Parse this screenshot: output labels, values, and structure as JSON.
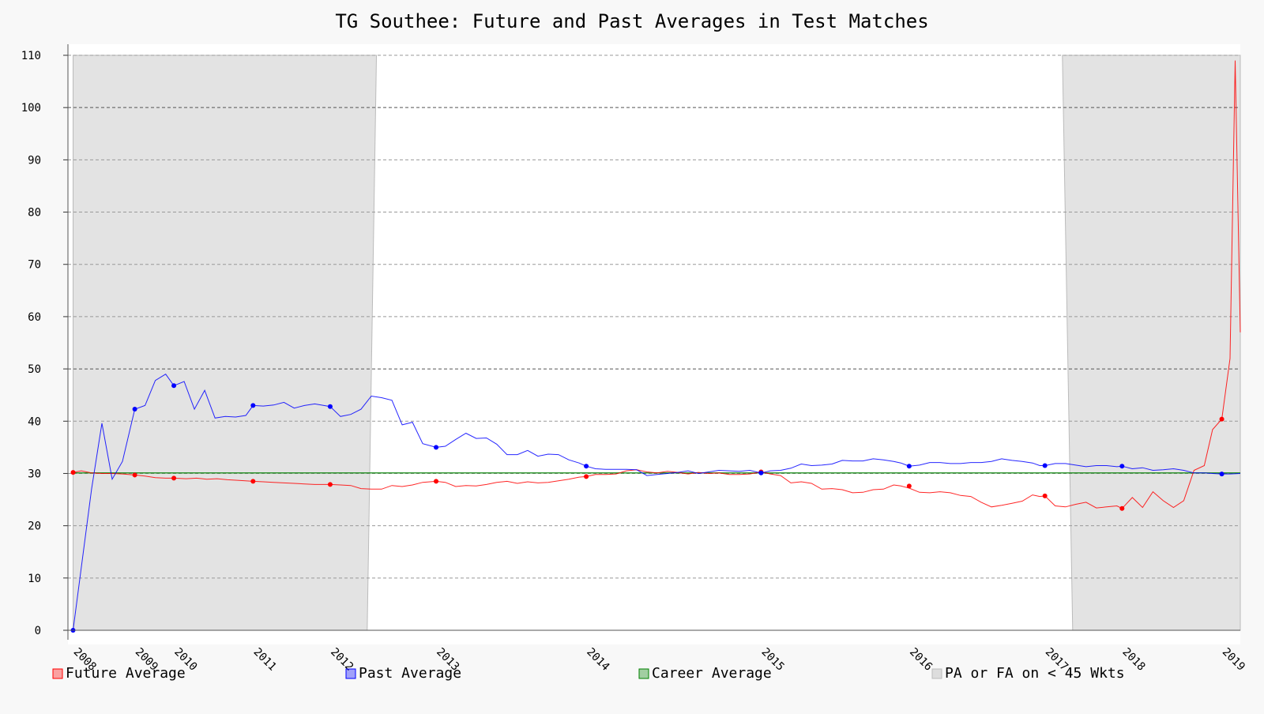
{
  "chart_data": {
    "type": "line",
    "title": "TG Southee: Future and Past Averages in Test Matches",
    "ylim": [
      0,
      110
    ],
    "y_ticks": [
      "0",
      "10",
      "20",
      "30",
      "40",
      "50",
      "60",
      "70",
      "80",
      "90",
      "100",
      "110"
    ],
    "x_range": [
      2007.95,
      2019.35
    ],
    "x_ticks": [
      {
        "label": "2008",
        "x": 2008.0
      },
      {
        "label": "2009",
        "x": 2008.6
      },
      {
        "label": "2010",
        "x": 2008.98
      },
      {
        "label": "2011",
        "x": 2009.75
      },
      {
        "label": "2012",
        "x": 2010.5
      },
      {
        "label": "2013",
        "x": 2011.53
      },
      {
        "label": "2014",
        "x": 2012.99
      },
      {
        "label": "2015",
        "x": 2014.69
      },
      {
        "label": "2016",
        "x": 2016.13
      },
      {
        "label": "2017",
        "x": 2017.45
      },
      {
        "label": "2018",
        "x": 2018.2
      },
      {
        "label": "2019",
        "x": 2019.17
      }
    ],
    "grid": true,
    "legend_position": "bottom",
    "shaded_regions": [
      {
        "name": "PA or FA on < 45 Wkts",
        "x_start_bottom": 2008.0,
        "x_end_bottom": 2010.86,
        "x_start_top": 2008.0,
        "x_end_top": 2010.95
      },
      {
        "name": "PA or FA on < 45 Wkts",
        "x_start_bottom": 2017.72,
        "x_end_bottom": 2019.35,
        "x_start_top": 2017.62,
        "x_end_top": 2019.35
      }
    ],
    "series": [
      {
        "name": "Future Average",
        "color": "#ff0000",
        "x": [
          2008.0,
          2008.08,
          2008.18,
          2008.28,
          2008.38,
          2008.48,
          2008.6,
          2008.7,
          2008.8,
          2008.9,
          2008.98,
          2009.1,
          2009.2,
          2009.3,
          2009.4,
          2009.5,
          2009.6,
          2009.75,
          2009.85,
          2009.95,
          2010.05,
          2010.15,
          2010.25,
          2010.35,
          2010.5,
          2010.6,
          2010.7,
          2010.8,
          2010.9,
          2011.0,
          2011.1,
          2011.2,
          2011.3,
          2011.4,
          2011.53,
          2011.62,
          2011.72,
          2011.82,
          2011.92,
          2012.02,
          2012.12,
          2012.22,
          2012.32,
          2012.42,
          2012.52,
          2012.62,
          2012.72,
          2012.82,
          2012.92,
          2012.99,
          2013.08,
          2013.18,
          2013.28,
          2013.38,
          2013.48,
          2013.58,
          2013.68,
          2013.78,
          2013.88,
          2013.98,
          2014.08,
          2014.18,
          2014.28,
          2014.38,
          2014.48,
          2014.58,
          2014.69,
          2014.78,
          2014.88,
          2014.98,
          2015.08,
          2015.18,
          2015.28,
          2015.38,
          2015.48,
          2015.58,
          2015.68,
          2015.78,
          2015.88,
          2015.98,
          2016.05,
          2016.13,
          2016.23,
          2016.33,
          2016.43,
          2016.53,
          2016.63,
          2016.73,
          2016.83,
          2016.93,
          2017.03,
          2017.13,
          2017.23,
          2017.33,
          2017.4,
          2017.45,
          2017.55,
          2017.65,
          2017.75,
          2017.85,
          2017.95,
          2018.05,
          2018.15,
          2018.2,
          2018.3,
          2018.4,
          2018.5,
          2018.6,
          2018.7,
          2018.8,
          2018.9,
          2019.0,
          2019.08,
          2019.17,
          2019.25,
          2019.3,
          2019.35
        ],
        "values": [
          30.2,
          30.5,
          30.1,
          30.0,
          30.0,
          29.9,
          29.7,
          29.5,
          29.2,
          29.1,
          29.1,
          29.0,
          29.1,
          28.9,
          29.0,
          28.8,
          28.7,
          28.5,
          28.4,
          28.3,
          28.2,
          28.1,
          28.0,
          27.9,
          27.9,
          27.8,
          27.7,
          27.1,
          27.0,
          27.0,
          27.7,
          27.5,
          27.8,
          28.3,
          28.5,
          28.3,
          27.5,
          27.7,
          27.6,
          27.9,
          28.3,
          28.5,
          28.1,
          28.4,
          28.2,
          28.3,
          28.6,
          28.9,
          29.3,
          29.4,
          29.8,
          29.8,
          29.9,
          30.5,
          30.7,
          30.3,
          30.1,
          30.4,
          30.2,
          29.9,
          30.2,
          30.0,
          30.1,
          29.8,
          29.8,
          29.9,
          30.3,
          29.9,
          29.6,
          28.2,
          28.4,
          28.1,
          27.0,
          27.1,
          26.9,
          26.3,
          26.4,
          26.9,
          27.0,
          27.8,
          27.6,
          27.2,
          26.4,
          26.3,
          26.5,
          26.3,
          25.8,
          25.6,
          24.5,
          23.6,
          23.9,
          24.3,
          24.7,
          25.9,
          25.6,
          25.7,
          23.8,
          23.6,
          24.1,
          24.5,
          23.4,
          23.6,
          23.8,
          23.3,
          25.4,
          23.5,
          26.5,
          24.8,
          23.5,
          24.8,
          30.6,
          31.5,
          38.4,
          40.4,
          52.0,
          109.0,
          57.0
        ],
        "marker_x": [
          2008.0,
          2008.6,
          2008.98,
          2009.75,
          2010.5,
          2011.53,
          2012.99,
          2014.69,
          2016.13,
          2017.45,
          2018.2,
          2019.17
        ],
        "marker_y": [
          30.2,
          29.7,
          29.1,
          28.5,
          27.9,
          28.5,
          29.4,
          30.3,
          27.6,
          25.7,
          23.3,
          40.4
        ]
      },
      {
        "name": "Past Average",
        "color": "#0000ff",
        "x": [
          2008.0,
          2008.08,
          2008.18,
          2008.28,
          2008.38,
          2008.48,
          2008.6,
          2008.7,
          2008.8,
          2008.9,
          2008.98,
          2009.08,
          2009.18,
          2009.28,
          2009.38,
          2009.48,
          2009.58,
          2009.68,
          2009.75,
          2009.85,
          2009.95,
          2010.05,
          2010.15,
          2010.25,
          2010.35,
          2010.5,
          2010.6,
          2010.7,
          2010.8,
          2010.9,
          2011.0,
          2011.1,
          2011.2,
          2011.3,
          2011.4,
          2011.53,
          2011.62,
          2011.72,
          2011.82,
          2011.92,
          2012.02,
          2012.12,
          2012.22,
          2012.32,
          2012.42,
          2012.52,
          2012.62,
          2012.72,
          2012.82,
          2012.92,
          2012.99,
          2013.08,
          2013.18,
          2013.28,
          2013.38,
          2013.48,
          2013.58,
          2013.68,
          2013.78,
          2013.88,
          2013.98,
          2014.08,
          2014.18,
          2014.28,
          2014.38,
          2014.48,
          2014.58,
          2014.69,
          2014.78,
          2014.88,
          2014.98,
          2015.08,
          2015.18,
          2015.28,
          2015.38,
          2015.48,
          2015.58,
          2015.68,
          2015.78,
          2015.88,
          2015.98,
          2016.05,
          2016.13,
          2016.23,
          2016.33,
          2016.43,
          2016.53,
          2016.63,
          2016.73,
          2016.83,
          2016.93,
          2017.03,
          2017.13,
          2017.23,
          2017.33,
          2017.4,
          2017.45,
          2017.55,
          2017.65,
          2017.75,
          2017.85,
          2017.95,
          2018.05,
          2018.15,
          2018.2,
          2018.3,
          2018.4,
          2018.5,
          2018.6,
          2018.7,
          2018.8,
          2018.9,
          2019.0,
          2019.08,
          2019.17,
          2019.25,
          2019.35
        ],
        "values": [
          0.0,
          12.0,
          27.0,
          39.6,
          28.9,
          32.3,
          42.3,
          43.0,
          47.8,
          49.0,
          46.8,
          47.6,
          42.3,
          45.9,
          40.6,
          40.9,
          40.8,
          41.1,
          43.0,
          42.9,
          43.1,
          43.6,
          42.5,
          43.0,
          43.3,
          42.8,
          40.9,
          41.3,
          42.3,
          44.8,
          44.5,
          44.0,
          39.3,
          39.8,
          35.7,
          35.0,
          35.2,
          36.5,
          37.7,
          36.7,
          36.8,
          35.6,
          33.6,
          33.6,
          34.4,
          33.3,
          33.7,
          33.6,
          32.6,
          32.0,
          31.4,
          30.9,
          30.8,
          30.8,
          30.8,
          30.7,
          29.6,
          29.8,
          30.0,
          30.2,
          30.5,
          30.0,
          30.3,
          30.6,
          30.5,
          30.4,
          30.6,
          30.1,
          30.5,
          30.6,
          31.0,
          31.8,
          31.5,
          31.6,
          31.8,
          32.5,
          32.4,
          32.4,
          32.8,
          32.6,
          32.3,
          32.0,
          31.4,
          31.6,
          32.1,
          32.1,
          31.9,
          31.9,
          32.1,
          32.1,
          32.3,
          32.8,
          32.5,
          32.3,
          32.0,
          31.5,
          31.5,
          31.9,
          31.9,
          31.6,
          31.3,
          31.5,
          31.5,
          31.3,
          31.4,
          30.9,
          31.1,
          30.6,
          30.7,
          30.9,
          30.6,
          30.1,
          30.1,
          30.0,
          29.9,
          29.9,
          30.0
        ],
        "marker_x": [
          2008.0,
          2008.6,
          2008.98,
          2009.75,
          2010.5,
          2011.53,
          2012.99,
          2014.69,
          2016.13,
          2017.45,
          2018.2,
          2019.17
        ],
        "marker_y": [
          0.0,
          42.3,
          46.8,
          43.0,
          42.8,
          35.0,
          31.4,
          30.1,
          31.4,
          31.5,
          31.4,
          29.9
        ]
      },
      {
        "name": "Career Average",
        "color": "#008000",
        "x": [
          2008.0,
          2019.35
        ],
        "values": [
          30.1,
          30.1
        ]
      }
    ],
    "legend": [
      {
        "label": "Future Average",
        "color": "#ff0000"
      },
      {
        "label": "Past Average",
        "color": "#0000ff"
      },
      {
        "label": "Career Average",
        "color": "#008000"
      },
      {
        "label": "PA or FA on < 45 Wkts",
        "color": "#bbbbbb"
      }
    ]
  }
}
